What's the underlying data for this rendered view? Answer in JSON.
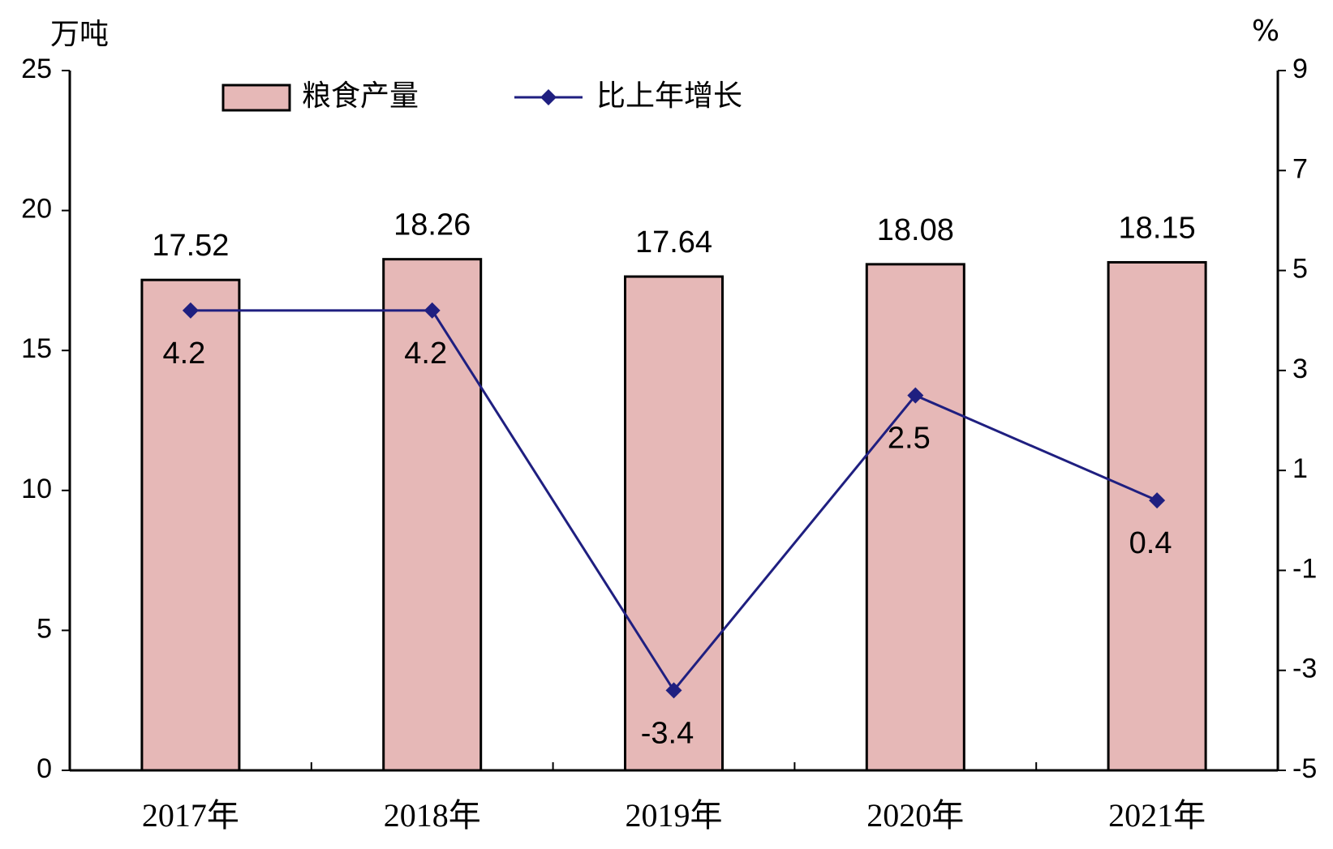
{
  "chart_data": {
    "type": "bar",
    "y_label": "万吨",
    "y2_label": "%",
    "categories": [
      "2017年",
      "2018年",
      "2019年",
      "2020年",
      "2021年"
    ],
    "series": [
      {
        "name": "粮食产量",
        "color": "#e6b8b7",
        "values": [
          17.52,
          18.26,
          17.64,
          18.08,
          18.15
        ]
      },
      {
        "name": "比上年增长",
        "type": "line",
        "axis": "y2",
        "color": "#1f1f80",
        "values": [
          4.2,
          4.2,
          -3.4,
          2.5,
          0.4
        ]
      }
    ],
    "ylim": [
      0,
      25
    ],
    "yticks": [
      0,
      5,
      10,
      15,
      20,
      25
    ],
    "y2lim": [
      -5,
      9
    ],
    "y2ticks": [
      -5,
      -3,
      -1,
      1,
      3,
      5,
      7,
      9
    ],
    "grid": false
  }
}
